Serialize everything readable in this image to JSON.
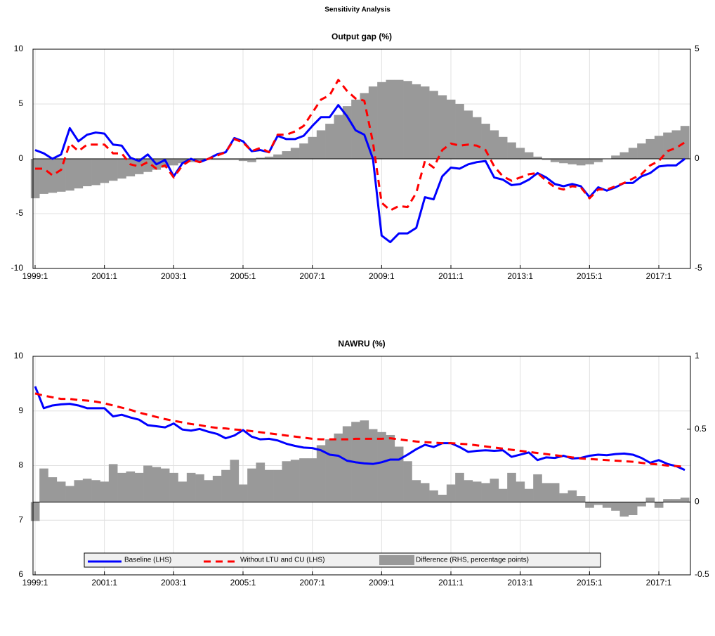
{
  "title": "Sensitivity Analysis",
  "chart_data": [
    {
      "type": "line",
      "title": "Output gap (%)",
      "categories": [
        "1999:1",
        null,
        null,
        null,
        null,
        null,
        null,
        null,
        "2001:1",
        null,
        null,
        null,
        null,
        null,
        null,
        null,
        "2003:1",
        null,
        null,
        null,
        null,
        null,
        null,
        null,
        "2005:1",
        null,
        null,
        null,
        null,
        null,
        null,
        null,
        "2007:1",
        null,
        null,
        null,
        null,
        null,
        null,
        null,
        "2009:1",
        null,
        null,
        null,
        null,
        null,
        null,
        null,
        "2011:1",
        null,
        null,
        null,
        null,
        null,
        null,
        null,
        "2013:1",
        null,
        null,
        null,
        null,
        null,
        null,
        null,
        "2015:1",
        null,
        null,
        null,
        null,
        null,
        null,
        null,
        "2017:1",
        null,
        null,
        null
      ],
      "ylim": [
        -10,
        10
      ],
      "yticks": [
        -10,
        -5,
        0,
        5,
        10
      ],
      "y2lim": [
        -5,
        5
      ],
      "y2ticks": [
        -5,
        0,
        5
      ],
      "grid": true,
      "series": [
        {
          "name": "Baseline (LHS)",
          "type": "line",
          "color": "#0000ff",
          "style": "solid",
          "values": [
            0.8,
            0.5,
            0.0,
            0.4,
            2.8,
            1.6,
            2.2,
            2.4,
            2.3,
            1.3,
            1.2,
            0.1,
            -0.2,
            0.4,
            -0.5,
            -0.1,
            -1.6,
            -0.4,
            0.0,
            -0.3,
            0.0,
            0.4,
            0.6,
            1.9,
            1.6,
            0.7,
            0.8,
            0.6,
            2.1,
            1.8,
            1.8,
            2.1,
            3.0,
            3.8,
            3.8,
            4.9,
            3.9,
            2.6,
            2.2,
            0.0,
            -7.0,
            -7.6,
            -6.8,
            -6.8,
            -6.3,
            -3.5,
            -3.7,
            -1.6,
            -0.8,
            -0.9,
            -0.5,
            -0.3,
            -0.2,
            -1.7,
            -1.9,
            -2.4,
            -2.3,
            -1.9,
            -1.3,
            -1.7,
            -2.3,
            -2.5,
            -2.3,
            -2.5,
            -3.5,
            -2.6,
            -2.9,
            -2.6,
            -2.2,
            -2.2,
            -1.6,
            -1.3,
            -0.7,
            -0.6,
            -0.6,
            0.0
          ]
        },
        {
          "name": "Without LTU and CU (LHS)",
          "type": "line",
          "color": "#ff0000",
          "style": "dashed",
          "values": [
            -0.9,
            -0.9,
            -1.5,
            -1.0,
            1.4,
            0.7,
            1.3,
            1.3,
            1.3,
            0.5,
            0.5,
            -0.5,
            -0.7,
            -0.3,
            -0.9,
            -0.6,
            -1.7,
            -0.6,
            -0.1,
            -0.3,
            0.0,
            0.3,
            0.6,
            1.8,
            1.5,
            0.7,
            1.0,
            0.6,
            2.2,
            2.2,
            2.5,
            3.0,
            4.2,
            5.4,
            5.8,
            7.2,
            6.2,
            5.5,
            5.3,
            1.5,
            -4.0,
            -4.7,
            -4.3,
            -4.4,
            -3.1,
            -0.2,
            -0.8,
            0.8,
            1.4,
            1.2,
            1.3,
            1.2,
            0.8,
            -0.7,
            -1.6,
            -2.0,
            -1.7,
            -1.4,
            -1.3,
            -2.0,
            -2.6,
            -2.8,
            -2.5,
            -2.6,
            -3.6,
            -2.8,
            -2.8,
            -2.5,
            -2.2,
            -1.8,
            -1.4,
            -0.6,
            -0.2,
            0.7,
            1.0,
            1.5
          ]
        },
        {
          "name": "Difference (RHS, percentage points)",
          "type": "bar",
          "axis": "y2",
          "color": "#999999",
          "values": [
            -1.8,
            -1.6,
            -1.55,
            -1.5,
            -1.45,
            -1.35,
            -1.25,
            -1.2,
            -1.1,
            -1.0,
            -0.9,
            -0.8,
            -0.7,
            -0.6,
            -0.5,
            -0.4,
            -0.3,
            -0.2,
            -0.15,
            -0.1,
            -0.05,
            -0.05,
            -0.05,
            -0.05,
            -0.1,
            -0.15,
            0.05,
            0.1,
            0.2,
            0.35,
            0.5,
            0.7,
            1.0,
            1.3,
            1.6,
            2.0,
            2.4,
            2.7,
            3.0,
            3.3,
            3.5,
            3.6,
            3.6,
            3.55,
            3.4,
            3.3,
            3.1,
            2.9,
            2.7,
            2.5,
            2.2,
            1.9,
            1.6,
            1.3,
            1.0,
            0.75,
            0.5,
            0.3,
            0.1,
            -0.05,
            -0.15,
            -0.2,
            -0.25,
            -0.3,
            -0.25,
            -0.15,
            0.0,
            0.15,
            0.3,
            0.5,
            0.7,
            0.9,
            1.05,
            1.2,
            1.3,
            1.5
          ]
        }
      ]
    },
    {
      "type": "line",
      "title": "NAWRU (%)",
      "categories": [
        "1999:1",
        null,
        null,
        null,
        null,
        null,
        null,
        null,
        "2001:1",
        null,
        null,
        null,
        null,
        null,
        null,
        null,
        "2003:1",
        null,
        null,
        null,
        null,
        null,
        null,
        null,
        "2005:1",
        null,
        null,
        null,
        null,
        null,
        null,
        null,
        "2007:1",
        null,
        null,
        null,
        null,
        null,
        null,
        null,
        "2009:1",
        null,
        null,
        null,
        null,
        null,
        null,
        null,
        "2011:1",
        null,
        null,
        null,
        null,
        null,
        null,
        null,
        "2013:1",
        null,
        null,
        null,
        null,
        null,
        null,
        null,
        "2015:1",
        null,
        null,
        null,
        null,
        null,
        null,
        null,
        "2017:1",
        null,
        null,
        null
      ],
      "ylim": [
        6,
        10
      ],
      "yticks": [
        6,
        7,
        8,
        9,
        10
      ],
      "y2lim": [
        -0.5,
        1
      ],
      "y2ticks": [
        -0.5,
        0,
        0.5,
        1
      ],
      "grid": true,
      "series": [
        {
          "type": "line",
          "color": "#0000ff",
          "style": "solid",
          "values": [
            9.45,
            9.05,
            9.1,
            9.12,
            9.13,
            9.1,
            9.05,
            9.05,
            9.05,
            8.9,
            8.93,
            8.88,
            8.84,
            8.74,
            8.72,
            8.7,
            8.77,
            8.66,
            8.64,
            8.67,
            8.62,
            8.58,
            8.5,
            8.55,
            8.65,
            8.53,
            8.48,
            8.49,
            8.46,
            8.4,
            8.36,
            8.33,
            8.32,
            8.28,
            8.2,
            8.18,
            8.09,
            8.06,
            8.04,
            8.03,
            8.06,
            8.11,
            8.11,
            8.2,
            8.3,
            8.38,
            8.34,
            8.41,
            8.41,
            8.34,
            8.25,
            8.27,
            8.28,
            8.27,
            8.28,
            8.16,
            8.2,
            8.24,
            8.1,
            8.15,
            8.14,
            8.18,
            8.13,
            8.14,
            8.18,
            8.2,
            8.19,
            8.21,
            8.22,
            8.2,
            8.14,
            8.05,
            8.1,
            8.03,
            7.99,
            7.92
          ]
        },
        {
          "type": "line",
          "color": "#ff0000",
          "style": "dashed",
          "values": [
            9.32,
            9.28,
            9.25,
            9.22,
            9.22,
            9.2,
            9.19,
            9.17,
            9.14,
            9.1,
            9.06,
            9.02,
            8.97,
            8.93,
            8.89,
            8.85,
            8.82,
            8.79,
            8.76,
            8.74,
            8.71,
            8.69,
            8.68,
            8.66,
            8.65,
            8.63,
            8.61,
            8.59,
            8.57,
            8.55,
            8.53,
            8.51,
            8.49,
            8.48,
            8.48,
            8.48,
            8.48,
            8.49,
            8.49,
            8.49,
            8.49,
            8.5,
            8.48,
            8.46,
            8.44,
            8.43,
            8.42,
            8.41,
            8.41,
            8.4,
            8.39,
            8.37,
            8.35,
            8.33,
            8.31,
            8.29,
            8.27,
            8.25,
            8.23,
            8.21,
            8.19,
            8.17,
            8.15,
            8.13,
            8.12,
            8.11,
            8.1,
            8.09,
            8.08,
            8.07,
            8.05,
            8.03,
            8.02,
            8.0,
            7.99,
            7.98
          ]
        },
        {
          "type": "bar",
          "axis": "y2",
          "color": "#999999",
          "values": [
            -0.13,
            0.23,
            0.17,
            0.14,
            0.11,
            0.15,
            0.16,
            0.15,
            0.14,
            0.26,
            0.2,
            0.21,
            0.2,
            0.25,
            0.24,
            0.23,
            0.2,
            0.14,
            0.2,
            0.19,
            0.15,
            0.18,
            0.22,
            0.29,
            0.12,
            0.23,
            0.27,
            0.22,
            0.22,
            0.28,
            0.29,
            0.3,
            0.3,
            0.39,
            0.43,
            0.47,
            0.52,
            0.55,
            0.56,
            0.5,
            0.48,
            0.46,
            0.38,
            0.28,
            0.15,
            0.13,
            0.08,
            0.05,
            0.12,
            0.2,
            0.15,
            0.14,
            0.13,
            0.16,
            0.09,
            0.2,
            0.14,
            0.09,
            0.19,
            0.13,
            0.13,
            0.06,
            0.08,
            0.04,
            -0.04,
            -0.02,
            -0.04,
            -0.06,
            -0.1,
            -0.09,
            -0.03,
            0.03,
            -0.04,
            0.02,
            0.02,
            0.03
          ]
        }
      ]
    }
  ]
}
